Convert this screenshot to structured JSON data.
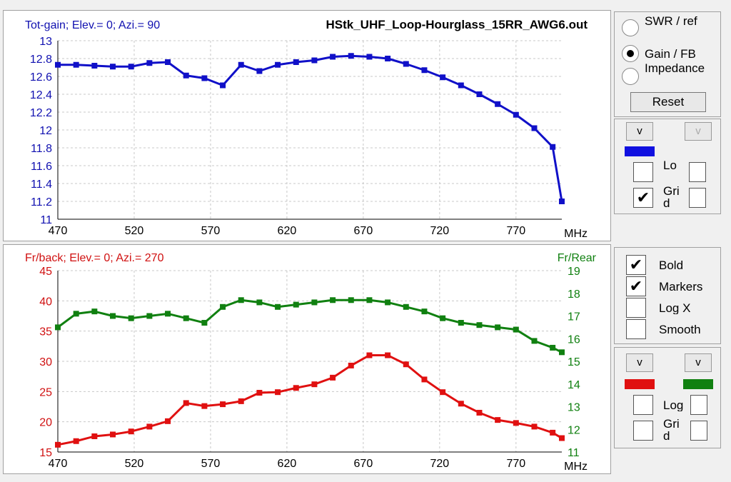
{
  "chart_data": [
    {
      "type": "line",
      "title": "HStk_UHF_Loop-Hourglass_15RR_AWG6.out",
      "subtitle": "Tot-gain; Elev.= 0; Azi.= 90",
      "xlabel": "MHz",
      "xlim": [
        470,
        800
      ],
      "ylim": [
        11,
        13
      ],
      "grid": true,
      "x_ticks": [
        "470",
        "520",
        "570",
        "620",
        "670",
        "720",
        "770"
      ],
      "y_ticks": [
        "13",
        "12.8",
        "12.6",
        "12.4",
        "12.2",
        "12",
        "11.8",
        "11.6",
        "11.4",
        "11.2",
        "11"
      ],
      "x": [
        470,
        482,
        494,
        506,
        518,
        530,
        542,
        554,
        566,
        578,
        590,
        602,
        614,
        626,
        638,
        650,
        662,
        674,
        686,
        698,
        710,
        722,
        734,
        746,
        758,
        770,
        782,
        794,
        800
      ],
      "series": [
        {
          "color": "#1010c8",
          "values": [
            12.73,
            12.73,
            12.72,
            12.71,
            12.71,
            12.75,
            12.76,
            12.61,
            12.58,
            12.5,
            12.73,
            12.66,
            12.73,
            12.76,
            12.78,
            12.82,
            12.83,
            12.82,
            12.8,
            12.74,
            12.67,
            12.59,
            12.5,
            12.4,
            12.29,
            12.17,
            12.02,
            11.81,
            11.2
          ]
        }
      ]
    },
    {
      "type": "line",
      "subtitle": "Fr/back; Elev.= 0; Azi.= 270",
      "y2label": "Fr/Rear",
      "xlabel": "MHz",
      "xlim": [
        470,
        800
      ],
      "ylim": [
        15,
        45
      ],
      "y2lim": [
        11,
        19
      ],
      "grid": true,
      "x_ticks": [
        "470",
        "520",
        "570",
        "620",
        "670",
        "720",
        "770"
      ],
      "y_ticks": [
        "45",
        "40",
        "35",
        "30",
        "25",
        "20",
        "15"
      ],
      "y2_ticks": [
        "19",
        "18",
        "17",
        "16",
        "15",
        "14",
        "13",
        "12",
        "11"
      ],
      "x": [
        470,
        482,
        494,
        506,
        518,
        530,
        542,
        554,
        566,
        578,
        590,
        602,
        614,
        626,
        638,
        650,
        662,
        674,
        686,
        698,
        710,
        722,
        734,
        746,
        758,
        770,
        782,
        794,
        800
      ],
      "series": [
        {
          "axis": "left",
          "color": "#e01010",
          "values": [
            16.2,
            16.8,
            17.6,
            17.9,
            18.4,
            19.2,
            20.1,
            23.1,
            22.6,
            22.9,
            23.4,
            24.8,
            24.9,
            25.6,
            26.2,
            27.3,
            29.3,
            31.0,
            31.0,
            29.5,
            27.0,
            24.9,
            23.0,
            21.5,
            20.3,
            19.8,
            19.2,
            18.2,
            17.3
          ]
        },
        {
          "axis": "right",
          "color": "#108010",
          "values": [
            16.5,
            17.1,
            17.2,
            17.0,
            16.9,
            17.0,
            17.1,
            16.9,
            16.7,
            17.4,
            17.7,
            17.6,
            17.4,
            17.5,
            17.6,
            17.7,
            17.7,
            17.7,
            17.6,
            17.4,
            17.2,
            16.9,
            16.7,
            16.6,
            16.5,
            16.4,
            15.9,
            15.6,
            15.4
          ]
        }
      ]
    }
  ],
  "controls": {
    "radios": [
      {
        "label": "SWR / ref",
        "checked": false
      },
      {
        "label": "Gain / FB",
        "checked": true
      },
      {
        "label": "Impedance",
        "checked": false
      }
    ],
    "reset_label": "Reset",
    "top": {
      "v_left": "v",
      "v_right": "v",
      "swatch_color": "#1010e0",
      "log_label": "Lo",
      "log_checked": false,
      "grid_label": "Gri d",
      "grid_checked": true
    },
    "options": [
      {
        "label": "Bold",
        "checked": true
      },
      {
        "label": "Markers",
        "checked": true
      },
      {
        "label": "Log X",
        "checked": false
      },
      {
        "label": "Smooth",
        "checked": false
      }
    ],
    "bottom": {
      "v_left": "v",
      "v_right": "v",
      "swatch_left": "#e01010",
      "swatch_right": "#108010",
      "log_label": "Log",
      "log_checked": false,
      "grid_label": "Gri d",
      "grid_checked": false
    }
  }
}
